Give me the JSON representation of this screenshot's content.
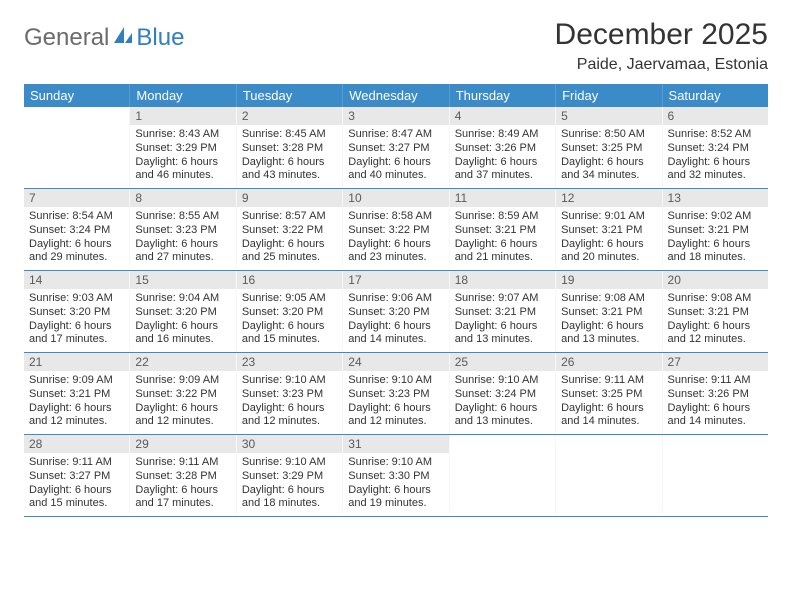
{
  "brand": {
    "word1": "General",
    "word2": "Blue",
    "word1_color": "#6b6b6b",
    "word2_color": "#2f7fc2",
    "icon_color": "#2f7fc2"
  },
  "title": "December 2025",
  "location": "Paide, Jaervamaa, Estonia",
  "colors": {
    "header_bg": "#3b8bc9",
    "header_text": "#ffffff",
    "daynum_bg": "#e8e8e8",
    "daynum_text": "#5a5a5a",
    "border": "#3b8bc9",
    "body_text": "#333333"
  },
  "day_names": [
    "Sunday",
    "Monday",
    "Tuesday",
    "Wednesday",
    "Thursday",
    "Friday",
    "Saturday"
  ],
  "weeks": [
    [
      {
        "day": "",
        "sunrise": "",
        "sunset": "",
        "daylight": "",
        "empty": true
      },
      {
        "day": "1",
        "sunrise": "Sunrise: 8:43 AM",
        "sunset": "Sunset: 3:29 PM",
        "daylight": "Daylight: 6 hours and 46 minutes."
      },
      {
        "day": "2",
        "sunrise": "Sunrise: 8:45 AM",
        "sunset": "Sunset: 3:28 PM",
        "daylight": "Daylight: 6 hours and 43 minutes."
      },
      {
        "day": "3",
        "sunrise": "Sunrise: 8:47 AM",
        "sunset": "Sunset: 3:27 PM",
        "daylight": "Daylight: 6 hours and 40 minutes."
      },
      {
        "day": "4",
        "sunrise": "Sunrise: 8:49 AM",
        "sunset": "Sunset: 3:26 PM",
        "daylight": "Daylight: 6 hours and 37 minutes."
      },
      {
        "day": "5",
        "sunrise": "Sunrise: 8:50 AM",
        "sunset": "Sunset: 3:25 PM",
        "daylight": "Daylight: 6 hours and 34 minutes."
      },
      {
        "day": "6",
        "sunrise": "Sunrise: 8:52 AM",
        "sunset": "Sunset: 3:24 PM",
        "daylight": "Daylight: 6 hours and 32 minutes."
      }
    ],
    [
      {
        "day": "7",
        "sunrise": "Sunrise: 8:54 AM",
        "sunset": "Sunset: 3:24 PM",
        "daylight": "Daylight: 6 hours and 29 minutes."
      },
      {
        "day": "8",
        "sunrise": "Sunrise: 8:55 AM",
        "sunset": "Sunset: 3:23 PM",
        "daylight": "Daylight: 6 hours and 27 minutes."
      },
      {
        "day": "9",
        "sunrise": "Sunrise: 8:57 AM",
        "sunset": "Sunset: 3:22 PM",
        "daylight": "Daylight: 6 hours and 25 minutes."
      },
      {
        "day": "10",
        "sunrise": "Sunrise: 8:58 AM",
        "sunset": "Sunset: 3:22 PM",
        "daylight": "Daylight: 6 hours and 23 minutes."
      },
      {
        "day": "11",
        "sunrise": "Sunrise: 8:59 AM",
        "sunset": "Sunset: 3:21 PM",
        "daylight": "Daylight: 6 hours and 21 minutes."
      },
      {
        "day": "12",
        "sunrise": "Sunrise: 9:01 AM",
        "sunset": "Sunset: 3:21 PM",
        "daylight": "Daylight: 6 hours and 20 minutes."
      },
      {
        "day": "13",
        "sunrise": "Sunrise: 9:02 AM",
        "sunset": "Sunset: 3:21 PM",
        "daylight": "Daylight: 6 hours and 18 minutes."
      }
    ],
    [
      {
        "day": "14",
        "sunrise": "Sunrise: 9:03 AM",
        "sunset": "Sunset: 3:20 PM",
        "daylight": "Daylight: 6 hours and 17 minutes."
      },
      {
        "day": "15",
        "sunrise": "Sunrise: 9:04 AM",
        "sunset": "Sunset: 3:20 PM",
        "daylight": "Daylight: 6 hours and 16 minutes."
      },
      {
        "day": "16",
        "sunrise": "Sunrise: 9:05 AM",
        "sunset": "Sunset: 3:20 PM",
        "daylight": "Daylight: 6 hours and 15 minutes."
      },
      {
        "day": "17",
        "sunrise": "Sunrise: 9:06 AM",
        "sunset": "Sunset: 3:20 PM",
        "daylight": "Daylight: 6 hours and 14 minutes."
      },
      {
        "day": "18",
        "sunrise": "Sunrise: 9:07 AM",
        "sunset": "Sunset: 3:21 PM",
        "daylight": "Daylight: 6 hours and 13 minutes."
      },
      {
        "day": "19",
        "sunrise": "Sunrise: 9:08 AM",
        "sunset": "Sunset: 3:21 PM",
        "daylight": "Daylight: 6 hours and 13 minutes."
      },
      {
        "day": "20",
        "sunrise": "Sunrise: 9:08 AM",
        "sunset": "Sunset: 3:21 PM",
        "daylight": "Daylight: 6 hours and 12 minutes."
      }
    ],
    [
      {
        "day": "21",
        "sunrise": "Sunrise: 9:09 AM",
        "sunset": "Sunset: 3:21 PM",
        "daylight": "Daylight: 6 hours and 12 minutes."
      },
      {
        "day": "22",
        "sunrise": "Sunrise: 9:09 AM",
        "sunset": "Sunset: 3:22 PM",
        "daylight": "Daylight: 6 hours and 12 minutes."
      },
      {
        "day": "23",
        "sunrise": "Sunrise: 9:10 AM",
        "sunset": "Sunset: 3:23 PM",
        "daylight": "Daylight: 6 hours and 12 minutes."
      },
      {
        "day": "24",
        "sunrise": "Sunrise: 9:10 AM",
        "sunset": "Sunset: 3:23 PM",
        "daylight": "Daylight: 6 hours and 12 minutes."
      },
      {
        "day": "25",
        "sunrise": "Sunrise: 9:10 AM",
        "sunset": "Sunset: 3:24 PM",
        "daylight": "Daylight: 6 hours and 13 minutes."
      },
      {
        "day": "26",
        "sunrise": "Sunrise: 9:11 AM",
        "sunset": "Sunset: 3:25 PM",
        "daylight": "Daylight: 6 hours and 14 minutes."
      },
      {
        "day": "27",
        "sunrise": "Sunrise: 9:11 AM",
        "sunset": "Sunset: 3:26 PM",
        "daylight": "Daylight: 6 hours and 14 minutes."
      }
    ],
    [
      {
        "day": "28",
        "sunrise": "Sunrise: 9:11 AM",
        "sunset": "Sunset: 3:27 PM",
        "daylight": "Daylight: 6 hours and 15 minutes."
      },
      {
        "day": "29",
        "sunrise": "Sunrise: 9:11 AM",
        "sunset": "Sunset: 3:28 PM",
        "daylight": "Daylight: 6 hours and 17 minutes."
      },
      {
        "day": "30",
        "sunrise": "Sunrise: 9:10 AM",
        "sunset": "Sunset: 3:29 PM",
        "daylight": "Daylight: 6 hours and 18 minutes."
      },
      {
        "day": "31",
        "sunrise": "Sunrise: 9:10 AM",
        "sunset": "Sunset: 3:30 PM",
        "daylight": "Daylight: 6 hours and 19 minutes."
      },
      {
        "day": "",
        "sunrise": "",
        "sunset": "",
        "daylight": "",
        "empty": true
      },
      {
        "day": "",
        "sunrise": "",
        "sunset": "",
        "daylight": "",
        "empty": true
      },
      {
        "day": "",
        "sunrise": "",
        "sunset": "",
        "daylight": "",
        "empty": true
      }
    ]
  ]
}
